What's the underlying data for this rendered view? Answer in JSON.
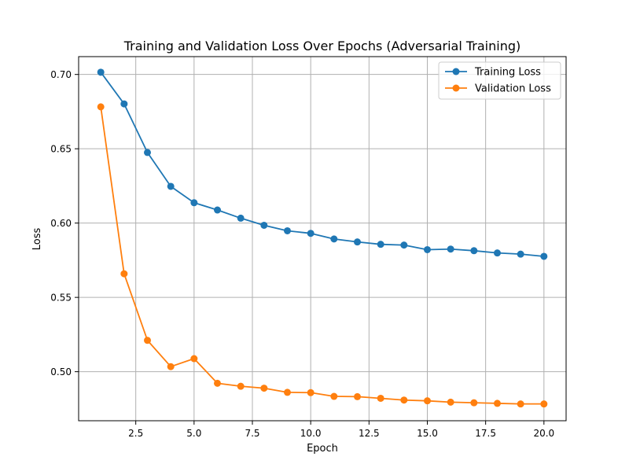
{
  "chart_data": {
    "type": "line",
    "title": "Training and Validation Loss Over Epochs (Adversarial Training)",
    "xlabel": "Epoch",
    "ylabel": "Loss",
    "xlim": [
      0.05,
      20.95
    ],
    "ylim": [
      0.467,
      0.712
    ],
    "xticks": [
      2.5,
      5.0,
      7.5,
      10.0,
      12.5,
      15.0,
      17.5,
      20.0
    ],
    "xtick_labels": [
      "2.5",
      "5.0",
      "7.5",
      "10.0",
      "12.5",
      "15.0",
      "17.5",
      "20.0"
    ],
    "yticks": [
      0.5,
      0.55,
      0.6,
      0.65,
      0.7
    ],
    "ytick_labels": [
      "0.50",
      "0.55",
      "0.60",
      "0.65",
      "0.70"
    ],
    "grid": true,
    "legend_position": "top-right",
    "x": [
      1,
      2,
      3,
      4,
      5,
      6,
      7,
      8,
      9,
      10,
      11,
      12,
      13,
      14,
      15,
      16,
      17,
      18,
      19,
      20
    ],
    "series": [
      {
        "name": "Training Loss",
        "color": "#1f77b4",
        "marker": "circle",
        "values": [
          0.7015,
          0.6802,
          0.6475,
          0.6247,
          0.6137,
          0.6088,
          0.6033,
          0.5985,
          0.5948,
          0.5931,
          0.5893,
          0.5873,
          0.5857,
          0.5852,
          0.5821,
          0.5825,
          0.5814,
          0.5799,
          0.5791,
          0.5776
        ]
      },
      {
        "name": "Validation Loss",
        "color": "#ff7f0e",
        "marker": "circle",
        "values": [
          0.6782,
          0.5659,
          0.5211,
          0.5034,
          0.5088,
          0.4922,
          0.4902,
          0.4889,
          0.4861,
          0.4859,
          0.4834,
          0.4832,
          0.4821,
          0.4809,
          0.4804,
          0.4795,
          0.4791,
          0.4787,
          0.4783,
          0.4783
        ]
      }
    ]
  }
}
